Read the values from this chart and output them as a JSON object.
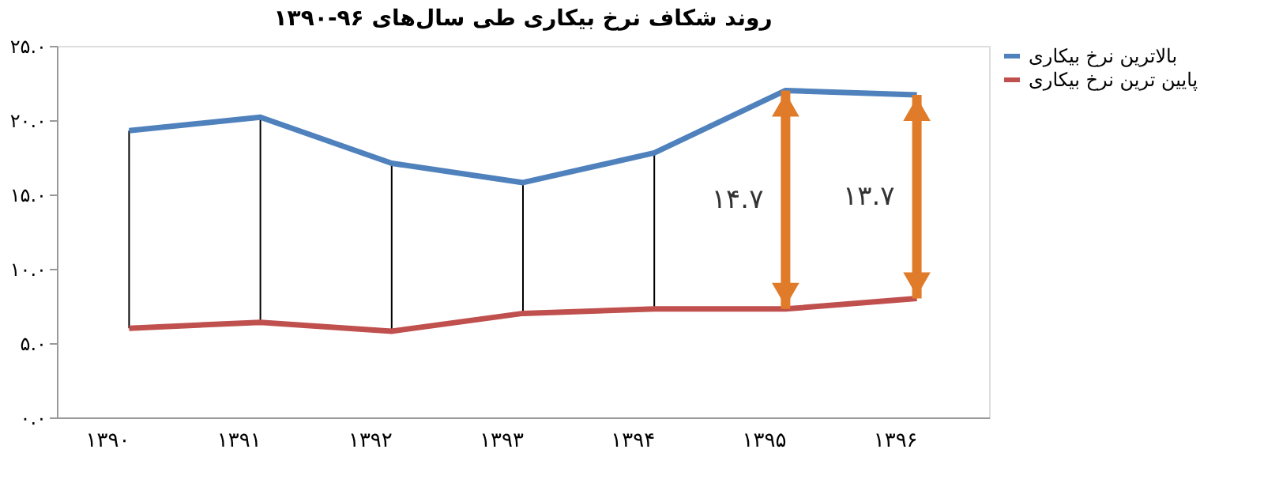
{
  "chart_data": {
    "type": "line",
    "title": "روند شکاف نرخ بیکاری طی سال‌های ۹۶-۱۳۹۰",
    "categories": [
      "۱۳۹۰",
      "۱۳۹۱",
      "۱۳۹۲",
      "۱۳۹۳",
      "۱۳۹۴",
      "۱۳۹۵",
      "۱۳۹۶"
    ],
    "series": [
      {
        "name": "بالاترین نرخ بیکاری",
        "color": "#4f81bd",
        "values": [
          19.3,
          20.2,
          17.1,
          15.8,
          17.8,
          22.0,
          21.7
        ]
      },
      {
        "name": "پایین ترین نرخ بیکاری",
        "color": "#c0504d",
        "values": [
          6.0,
          6.4,
          5.8,
          7.0,
          7.3,
          7.3,
          8.0
        ],
        "errors": [
          [
            6.0,
            19.3
          ],
          [
            6.4,
            20.2
          ],
          [
            5.8,
            17.1
          ],
          [
            7.0,
            15.8
          ],
          [
            7.3,
            17.8
          ],
          null,
          null
        ]
      }
    ],
    "annotations": [
      "۱۴.۷",
      "۱۳.۷"
    ],
    "ylim": [
      0,
      25
    ],
    "yticks": [
      {
        "value": 0,
        "label": "۰.۰"
      },
      {
        "value": 5,
        "label": "۵.۰"
      },
      {
        "value": 10,
        "label": "۱۰.۰"
      },
      {
        "value": 15,
        "label": "۱۵.۰"
      },
      {
        "value": 20,
        "label": "۲۰.۰"
      },
      {
        "value": 25,
        "label": "۲۵.۰"
      }
    ],
    "grid": false,
    "legend": "right",
    "marker": "none",
    "line_style": "solid"
  }
}
